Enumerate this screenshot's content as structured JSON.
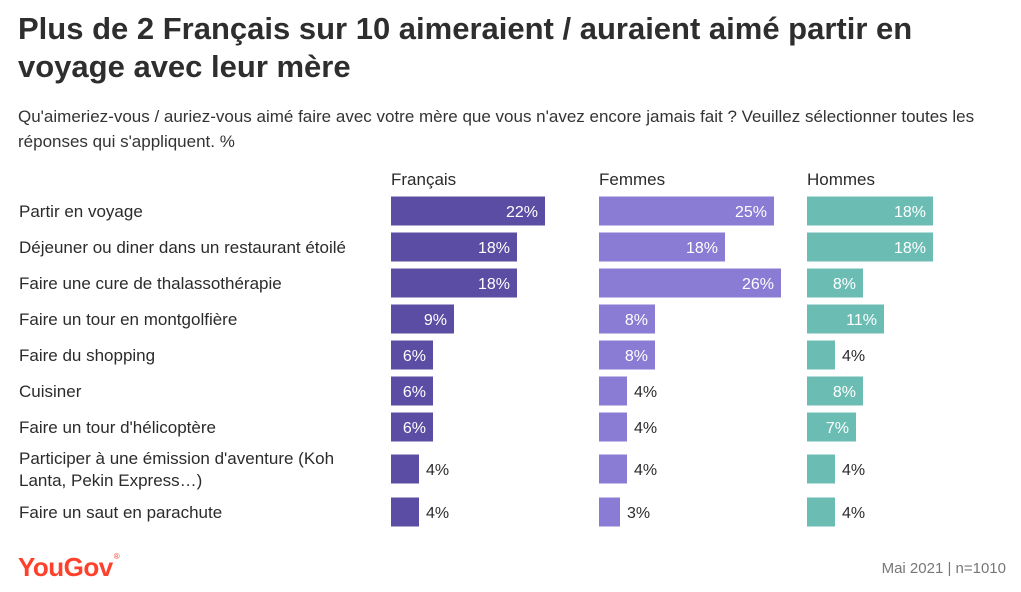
{
  "title": "Plus de 2 Français sur 10 aimeraient / auraient aimé partir en voyage avec leur mère",
  "subtitle": "Qu'aimeriez-vous / auriez-vous aimé faire avec votre mère que vous n'avez encore jamais fait ? Veuillez sélectionner toutes les réponses qui s'appliquent. %",
  "logo": "YouGov",
  "logo_mark": "®",
  "footer": "Mai 2021 | n=1010",
  "colors": {
    "Français": "#5b4da3",
    "Femmes": "#8a7bd4",
    "Hommes": "#6bbdb4",
    "title": "#2e2e2e",
    "logo": "#ff412c"
  },
  "chart_data": {
    "type": "bar",
    "orientation": "horizontal",
    "value_suffix": "%",
    "categories": [
      "Partir en voyage",
      "Déjeuner ou diner dans un restaurant étoilé",
      "Faire une cure de thalassothérapie",
      "Faire un tour en montgolfière",
      "Faire du shopping",
      "Cuisiner",
      "Faire un tour d'hélicoptère",
      "Participer à une émission d'aventure (Koh Lanta, Pekin Express…)",
      "Faire un saut en parachute"
    ],
    "category_lines": [
      [
        "Partir en voyage"
      ],
      [
        "Déjeuner ou diner dans un restaurant étoilé"
      ],
      [
        "Faire une cure de thalassothérapie"
      ],
      [
        "Faire un tour en montgolfière"
      ],
      [
        "Faire du shopping"
      ],
      [
        "Cuisiner"
      ],
      [
        "Faire un tour d'hélicoptère"
      ],
      [
        "Participer à une émission d'aventure (Koh",
        "Lanta, Pekin Express…)"
      ],
      [
        "Faire un saut en parachute"
      ]
    ],
    "series": [
      {
        "name": "Français",
        "color": "#5b4da3",
        "values": [
          22,
          18,
          18,
          9,
          6,
          6,
          6,
          4,
          4
        ]
      },
      {
        "name": "Femmes",
        "color": "#8a7bd4",
        "values": [
          25,
          18,
          26,
          8,
          8,
          4,
          4,
          4,
          3
        ]
      },
      {
        "name": "Hommes",
        "color": "#6bbdb4",
        "values": [
          18,
          18,
          8,
          11,
          4,
          8,
          7,
          4,
          4
        ]
      }
    ]
  }
}
